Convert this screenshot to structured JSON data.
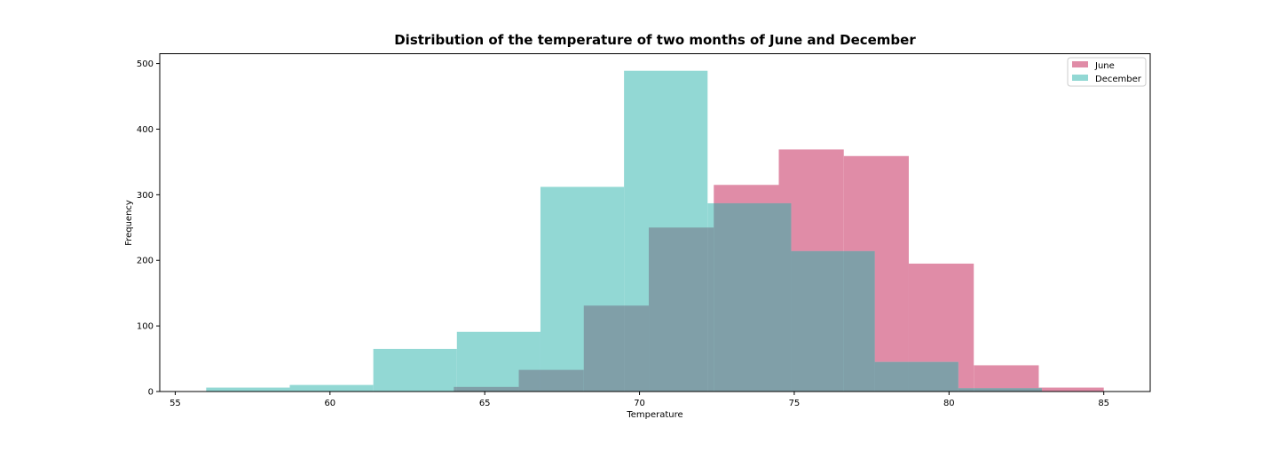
{
  "chart_data": {
    "type": "bar",
    "title": "Distribution of the temperature of two months of June and December",
    "xlabel": "Temperature",
    "ylabel": "Frequency",
    "xlim": [
      54.5,
      86.5
    ],
    "ylim": [
      0,
      515
    ],
    "xticks": [
      55,
      60,
      65,
      70,
      75,
      80,
      85
    ],
    "yticks": [
      0,
      100,
      200,
      300,
      400,
      500
    ],
    "legend_position": "top-right",
    "grid": false,
    "series": [
      {
        "name": "June",
        "color": "#e08ca7",
        "bin_edges": [
          64.0,
          66.1,
          68.2,
          70.3,
          72.4,
          74.5,
          76.6,
          78.7,
          80.8,
          82.9,
          85.0
        ],
        "values": [
          7,
          33,
          131,
          250,
          315,
          369,
          359,
          195,
          40,
          6
        ]
      },
      {
        "name": "December",
        "color": "#92d8d4",
        "bin_edges": [
          56.0,
          58.7,
          61.4,
          64.1,
          66.8,
          69.5,
          72.2,
          74.9,
          77.6,
          80.3,
          83.0
        ],
        "values": [
          6,
          10,
          65,
          91,
          312,
          489,
          287,
          214,
          45,
          5
        ]
      }
    ],
    "overlap_color": "#809fa8"
  }
}
